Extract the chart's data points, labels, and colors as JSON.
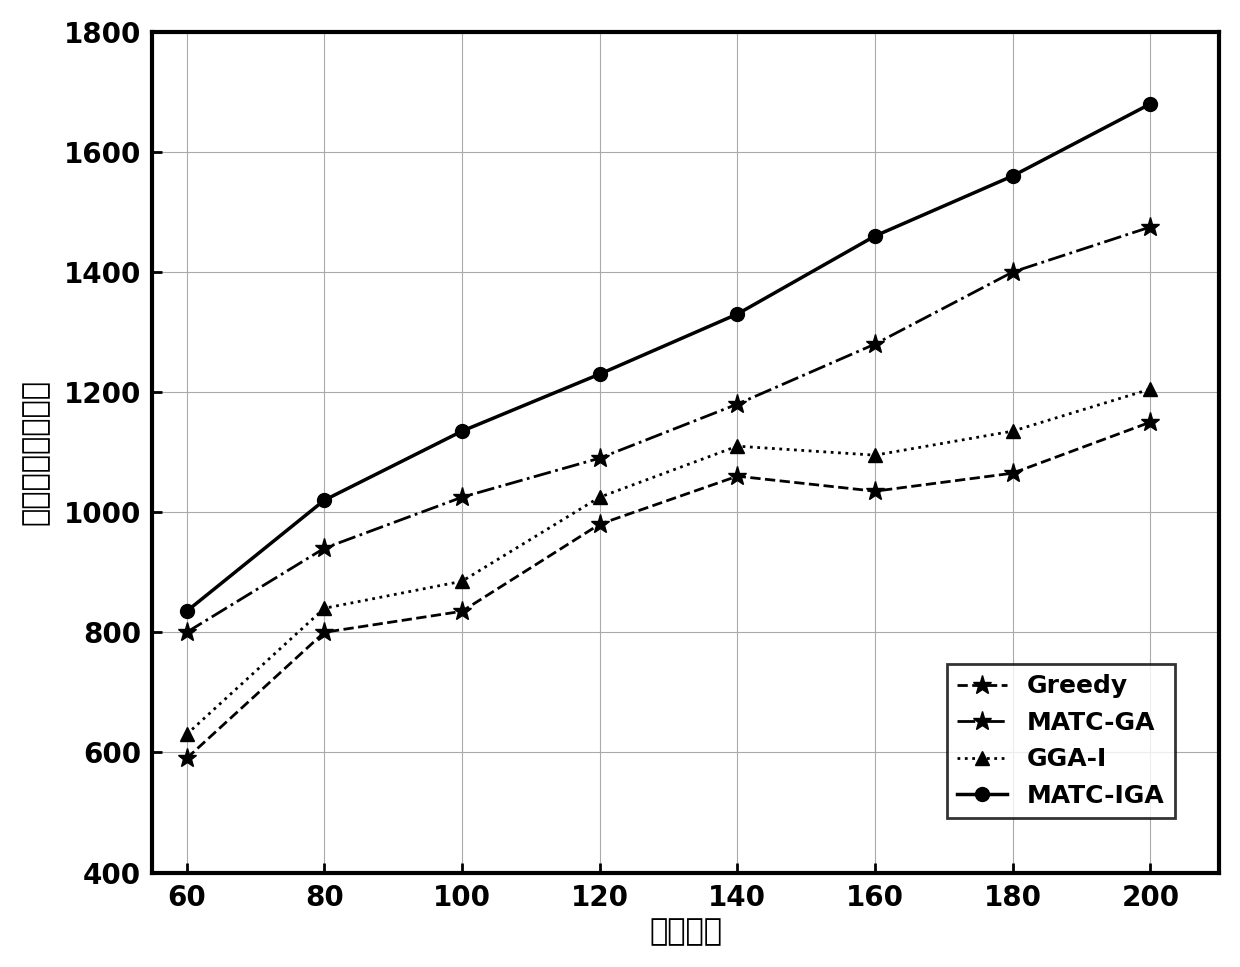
{
  "x": [
    60,
    80,
    100,
    120,
    140,
    160,
    180,
    200
  ],
  "greedy": [
    590,
    800,
    835,
    980,
    1060,
    1035,
    1065,
    1150
  ],
  "matc_ga": [
    800,
    940,
    1025,
    1090,
    1180,
    1280,
    1400,
    1475
  ],
  "gga_i": [
    630,
    840,
    885,
    1025,
    1110,
    1095,
    1135,
    1205
  ],
  "matc_iga": [
    835,
    1020,
    1135,
    1230,
    1330,
    1460,
    1560,
    1680
  ],
  "xlabel": "任务数量",
  "ylabel": "感知平台所获效益",
  "ylim": [
    400,
    1800
  ],
  "xlim": [
    55,
    210
  ],
  "xticks": [
    60,
    80,
    100,
    120,
    140,
    160,
    180,
    200
  ],
  "yticks": [
    400,
    600,
    800,
    1000,
    1200,
    1400,
    1600,
    1800
  ],
  "legend_labels": [
    "Greedy",
    "MATC-GA",
    "GGA-I",
    "MATC-IGA"
  ],
  "line_styles": [
    "--",
    "-.",
    ":",
    "-"
  ],
  "markers": [
    "*",
    "*",
    "^",
    "o"
  ],
  "marker_sizes": [
    14,
    14,
    10,
    10
  ],
  "linewidths": [
    2.0,
    2.0,
    2.0,
    2.5
  ],
  "colors": [
    "#000000",
    "#000000",
    "#000000",
    "#000000"
  ],
  "background_color": "#ffffff",
  "grid_color": "#aaaaaa",
  "spine_linewidth": 3.0,
  "tick_labelsize": 20,
  "axis_labelsize": 22,
  "legend_fontsize": 18
}
